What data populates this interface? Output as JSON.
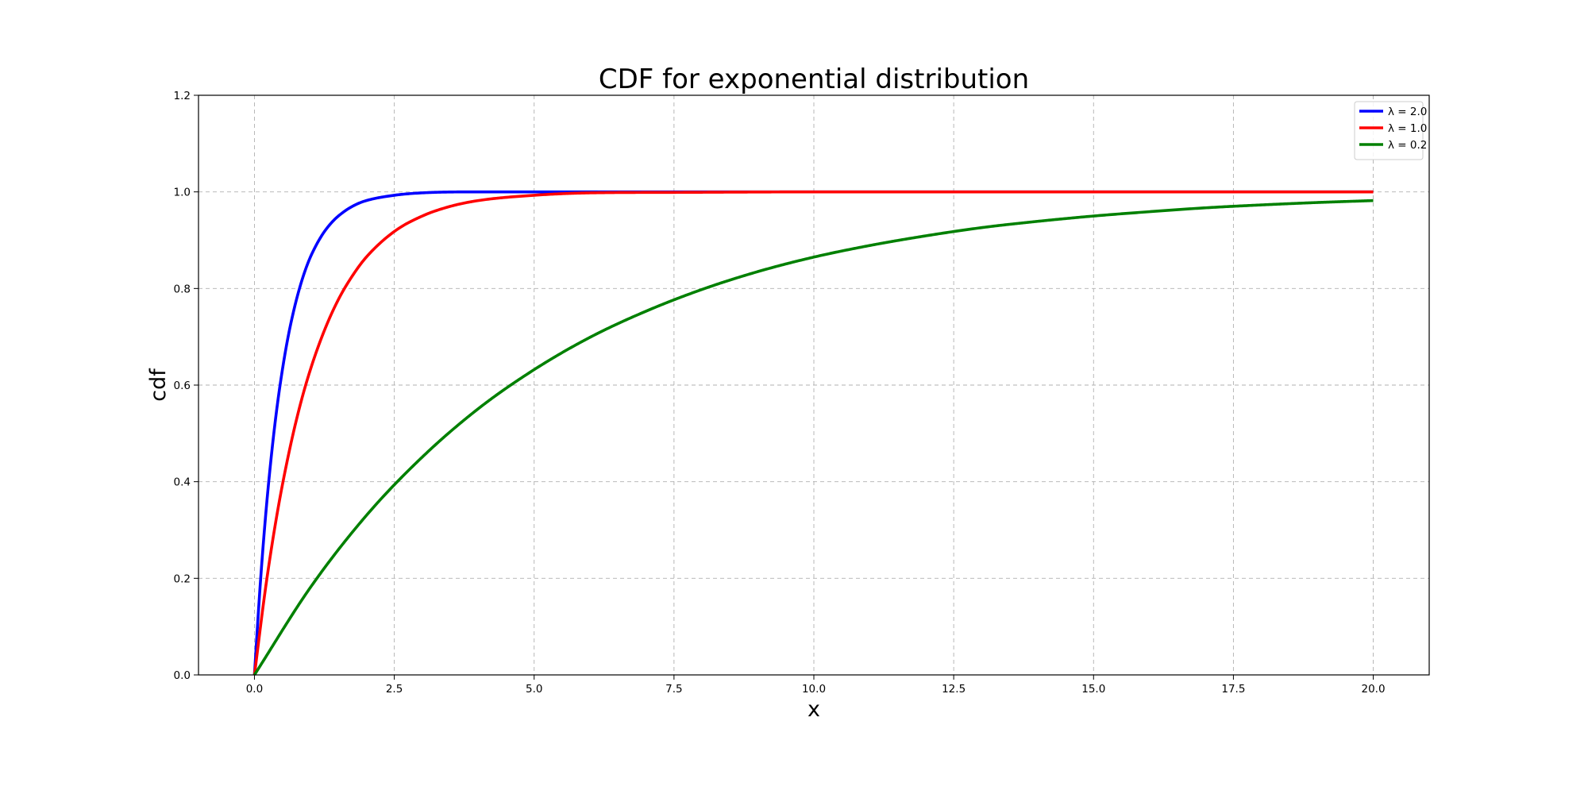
{
  "chart_data": {
    "type": "line",
    "title": "CDF for exponential distribution",
    "xlabel": "x",
    "ylabel": "cdf",
    "xlim": [
      -1.0,
      21.0
    ],
    "ylim": [
      0.0,
      1.2
    ],
    "x_ticks": [
      0.0,
      2.5,
      5.0,
      7.5,
      10.0,
      12.5,
      15.0,
      17.5,
      20.0
    ],
    "x_tick_labels": [
      "0.0",
      "2.5",
      "5.0",
      "7.5",
      "10.0",
      "12.5",
      "15.0",
      "17.5",
      "20.0"
    ],
    "y_ticks": [
      0.0,
      0.2,
      0.4,
      0.6,
      0.8,
      1.0,
      1.2
    ],
    "y_tick_labels": [
      "0.0",
      "0.2",
      "0.4",
      "0.6",
      "0.8",
      "1.0",
      "1.2"
    ],
    "grid": true,
    "legend_position": "top-right",
    "series": [
      {
        "name": "λ = 2.0",
        "color": "#0000ff",
        "x": [
          0,
          0.1,
          0.2,
          0.3,
          0.4,
          0.5,
          0.6,
          0.7,
          0.8,
          0.9,
          1.0,
          1.2,
          1.4,
          1.6,
          1.8,
          2.0,
          2.5,
          3.0,
          4.0,
          5.0,
          7.5,
          10.0,
          15.0,
          20.0
        ],
        "y": [
          0.0,
          0.181,
          0.33,
          0.451,
          0.551,
          0.632,
          0.699,
          0.753,
          0.798,
          0.835,
          0.865,
          0.909,
          0.939,
          0.959,
          0.973,
          0.982,
          0.993,
          0.998,
          1.0,
          1.0,
          1.0,
          1.0,
          1.0,
          1.0
        ]
      },
      {
        "name": "λ = 1.0",
        "color": "#ff0000",
        "x": [
          0,
          0.2,
          0.4,
          0.6,
          0.8,
          1.0,
          1.25,
          1.5,
          1.75,
          2.0,
          2.5,
          3.0,
          3.5,
          4.0,
          5.0,
          6.0,
          7.5,
          10.0,
          15.0,
          20.0
        ],
        "y": [
          0.0,
          0.181,
          0.33,
          0.451,
          0.551,
          0.632,
          0.713,
          0.777,
          0.826,
          0.865,
          0.918,
          0.95,
          0.97,
          0.982,
          0.993,
          0.998,
          0.999,
          1.0,
          1.0,
          1.0
        ]
      },
      {
        "name": "λ = 0.2",
        "color": "#008000",
        "x": [
          0,
          1.0,
          2.0,
          3.0,
          4.0,
          5.0,
          6.0,
          7.0,
          8.0,
          9.0,
          10.0,
          11.0,
          12.0,
          13.0,
          14.0,
          15.0,
          16.0,
          17.0,
          18.0,
          19.0,
          20.0
        ],
        "y": [
          0.0,
          0.181,
          0.33,
          0.451,
          0.551,
          0.632,
          0.699,
          0.753,
          0.798,
          0.835,
          0.865,
          0.889,
          0.909,
          0.926,
          0.939,
          0.95,
          0.959,
          0.967,
          0.973,
          0.978,
          0.982
        ]
      }
    ]
  }
}
